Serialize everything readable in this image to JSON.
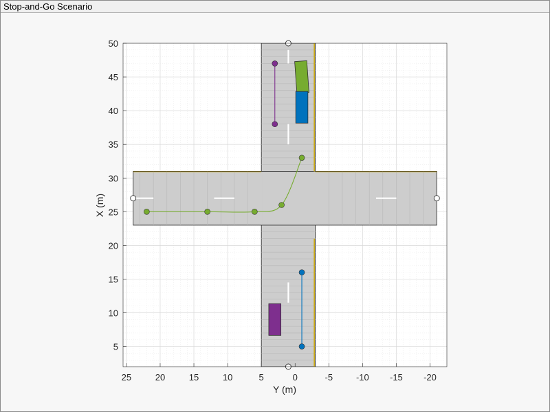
{
  "window": {
    "title": "Stop-and-Go Scenario"
  },
  "colors": {
    "road": "#cdcdcd",
    "road_edge": "#1a1a1a",
    "lane_yellow": "#c8a400",
    "lane_white": "#ffffff",
    "grid_major": "#d8d8d8",
    "grid_minor": "#e9e9e9",
    "ego_green": "#77ac30",
    "blue_car": "#0072bd",
    "purple_car": "#7e2f8e"
  },
  "chart_data": {
    "type": "scatter",
    "xlabel": "Y (m)",
    "ylabel": "X (m)",
    "x_axis_reversed": true,
    "xlim": [
      25.5,
      -22.5
    ],
    "ylim": [
      2,
      50
    ],
    "xticks": [
      25,
      20,
      15,
      10,
      5,
      0,
      -5,
      -10,
      -15,
      -20
    ],
    "xtick_labels": [
      "25",
      "20",
      "15",
      "10",
      "5",
      "0",
      "-5",
      "-10",
      "-15",
      "-20"
    ],
    "yticks": [
      5,
      10,
      15,
      20,
      25,
      30,
      35,
      40,
      45,
      50
    ],
    "ytick_labels": [
      "5",
      "10",
      "15",
      "20",
      "25",
      "30",
      "35",
      "40",
      "45",
      "50"
    ],
    "grid": "minor",
    "series": [
      {
        "color": "#77ac30",
        "waypoints": [
          [
            22,
            25
          ],
          [
            13,
            25
          ],
          [
            6,
            25
          ],
          [
            2,
            26
          ],
          [
            -1,
            33
          ]
        ]
      },
      {
        "color": "#0072bd",
        "waypoints": [
          [
            -1,
            5
          ],
          [
            -1,
            16
          ]
        ]
      },
      {
        "color": "#7e2f8e",
        "waypoints": [
          [
            3,
            38
          ],
          [
            3,
            47
          ]
        ]
      }
    ]
  }
}
